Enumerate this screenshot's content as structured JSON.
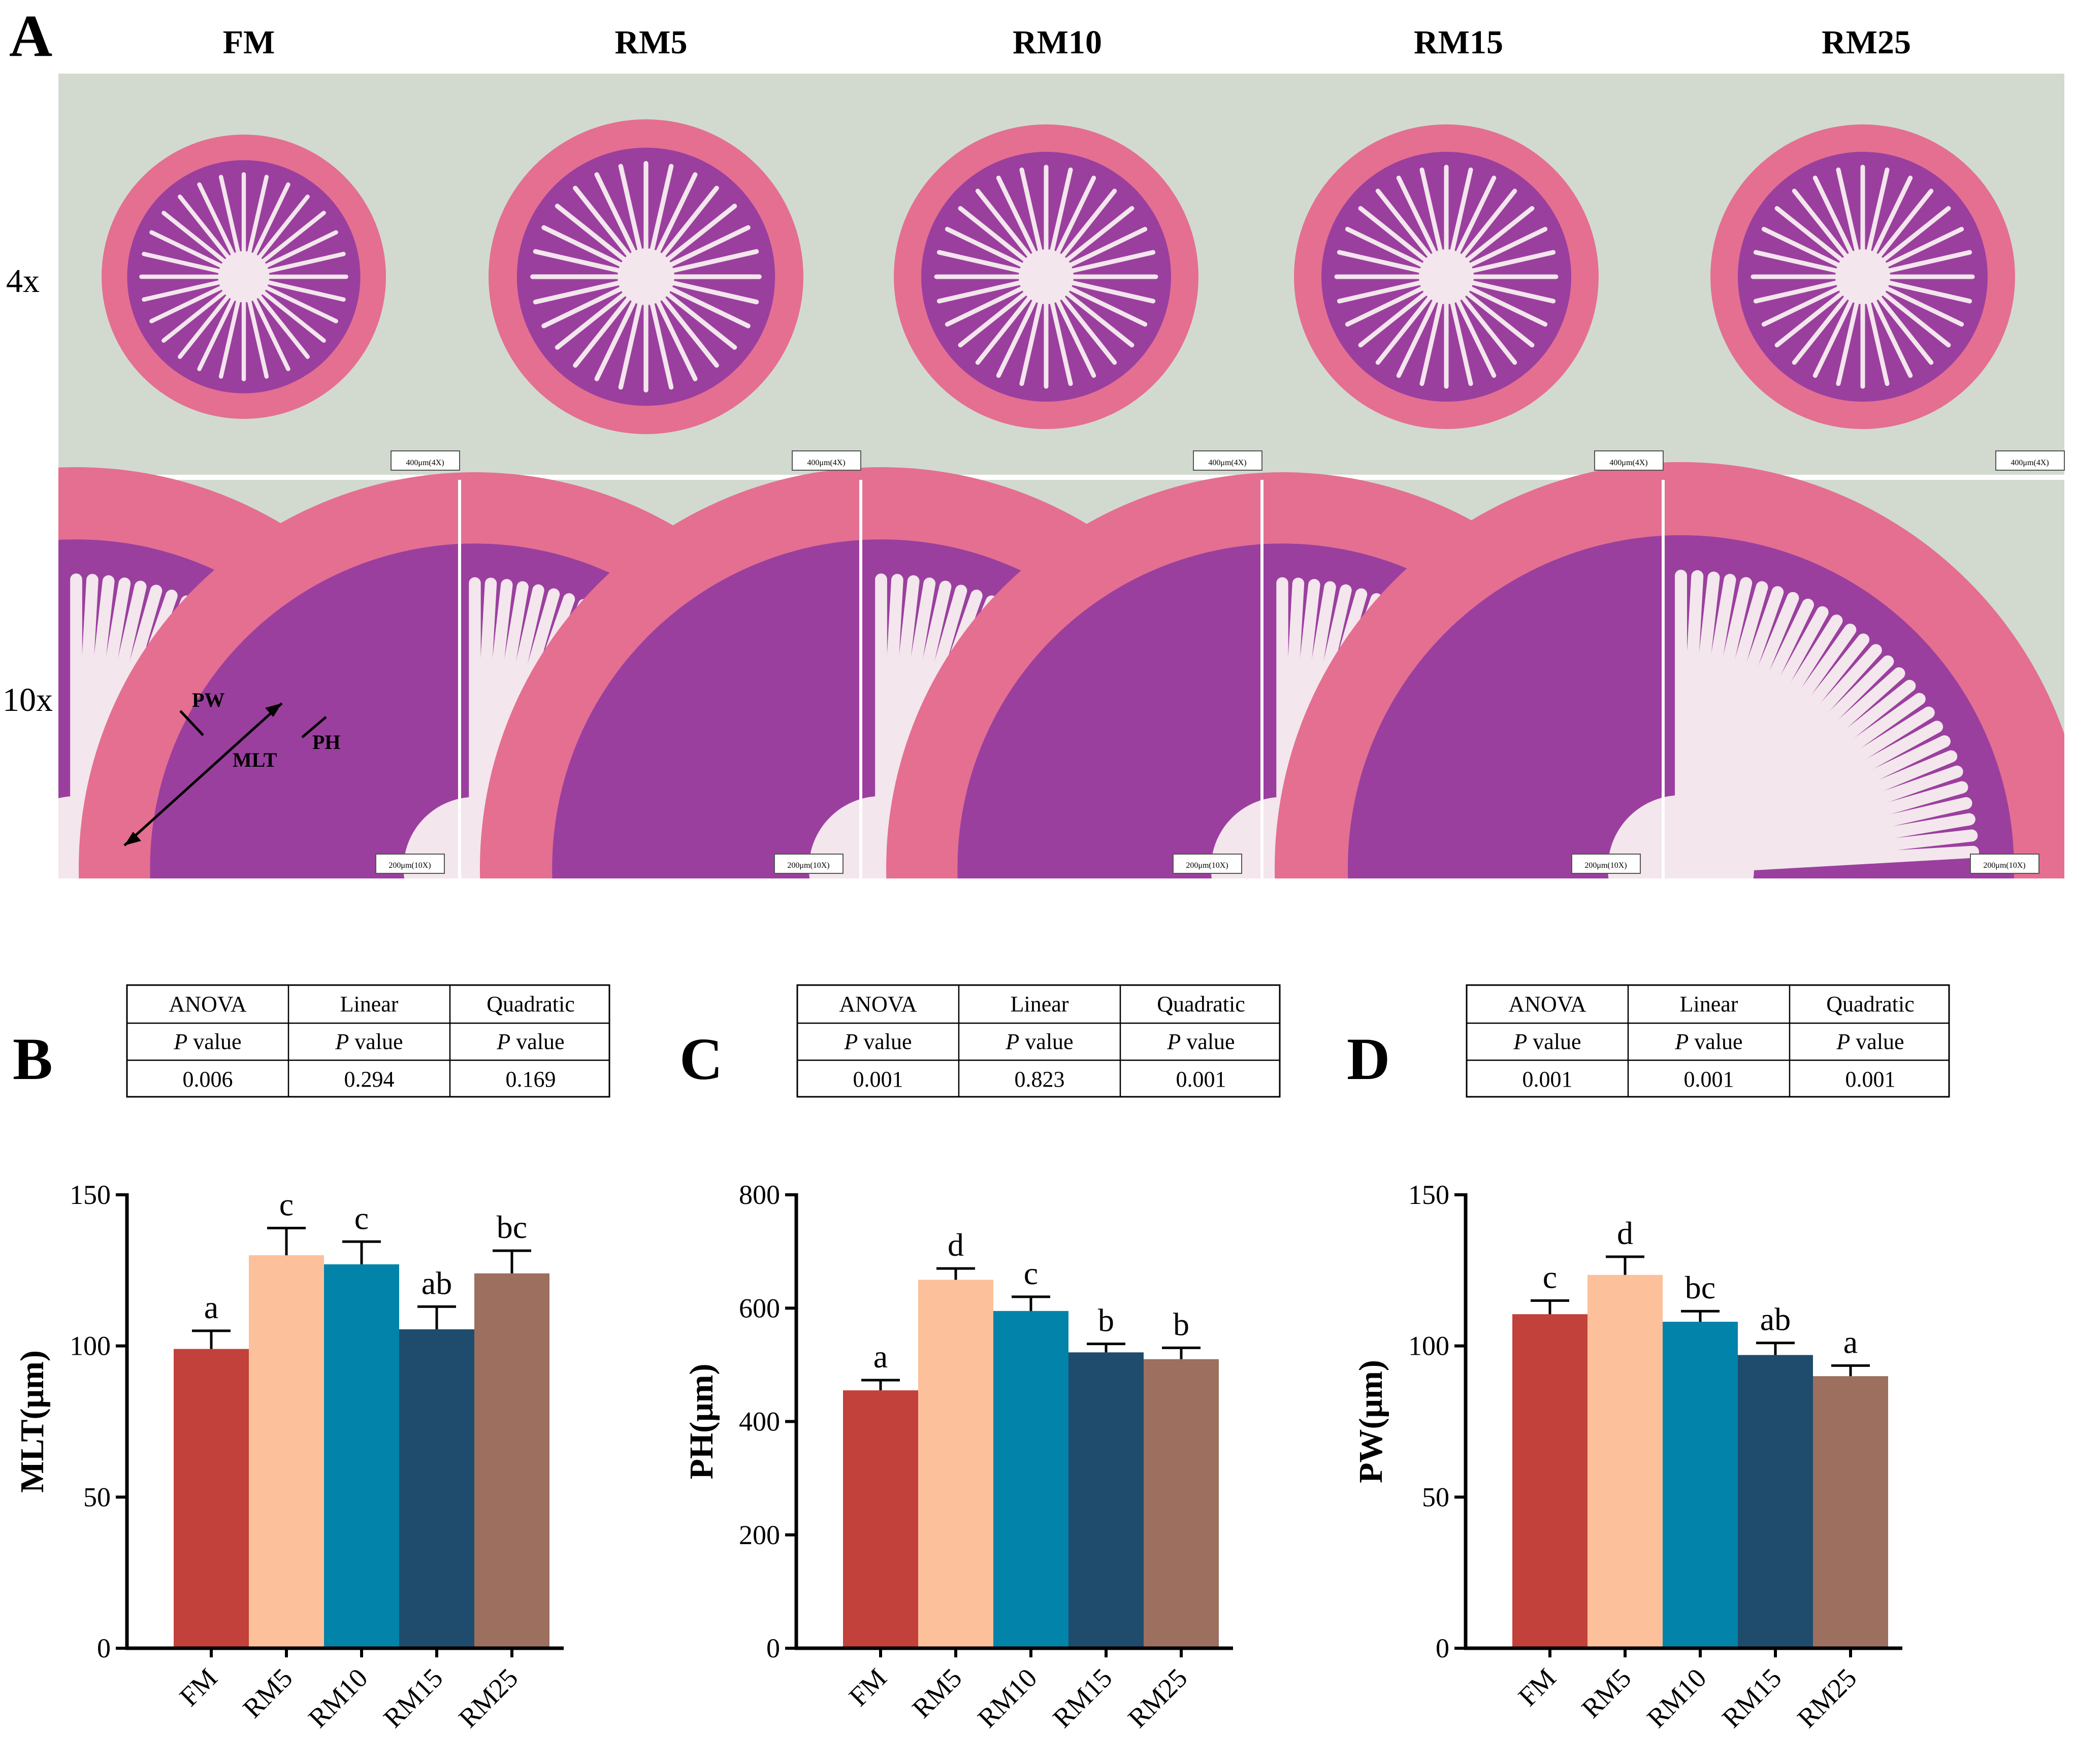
{
  "panel_a": {
    "letter": "A",
    "groups": [
      "FM",
      "RM5",
      "RM10",
      "RM15",
      "RM25"
    ],
    "rows": [
      {
        "label": "4x",
        "scale_bar": "400μm(4X)"
      },
      {
        "label": "10x",
        "scale_bar": "200μm(10X)"
      }
    ],
    "annotations": {
      "pw": "PW",
      "ph": "PH",
      "mlt": "MLT"
    }
  },
  "colors": {
    "FM": "#c2413a",
    "RM5": "#fcc09a",
    "RM10": "#0183aa",
    "RM15": "#1f4c6c",
    "RM25": "#9c6f5e",
    "background": "#d2dad0",
    "tissue": "#e46f91",
    "villi": "#9b3f9f",
    "lumen": "#f3e6ec"
  },
  "stat_tables": [
    {
      "header": [
        "ANOVA",
        "Linear",
        "Quadratic"
      ],
      "sub": [
        "value",
        "value",
        "value"
      ],
      "p": "P",
      "values": [
        "0.006",
        "0.294",
        "0.169"
      ]
    },
    {
      "header": [
        "ANOVA",
        "Linear",
        "Quadratic"
      ],
      "sub": [
        "value",
        "value",
        "value"
      ],
      "p": "P",
      "values": [
        "0.001",
        "0.823",
        "0.001"
      ]
    },
    {
      "header": [
        "ANOVA",
        "Linear",
        "Quadratic"
      ],
      "sub": [
        "value",
        "value",
        "value"
      ],
      "p": "P",
      "values": [
        "0.001",
        "0.001",
        "0.001"
      ]
    }
  ],
  "chart_data": [
    {
      "panel": "B",
      "type": "bar",
      "categories": [
        "FM",
        "RM5",
        "RM10",
        "RM15",
        "RM25"
      ],
      "values": [
        99,
        130,
        127,
        105.5,
        124
      ],
      "errors": [
        6,
        9,
        7.5,
        7.5,
        7.5
      ],
      "letters": [
        "a",
        "c",
        "c",
        "ab",
        "bc"
      ],
      "ylabel": "MLT(μm)",
      "ylim": [
        0,
        150
      ],
      "yticks": [
        0,
        50,
        100,
        150
      ],
      "xlabel": ""
    },
    {
      "panel": "C",
      "type": "bar",
      "categories": [
        "FM",
        "RM5",
        "RM10",
        "RM15",
        "RM25"
      ],
      "values": [
        455,
        650,
        595,
        522,
        510
      ],
      "errors": [
        18,
        20,
        25,
        15,
        20
      ],
      "letters": [
        "a",
        "d",
        "c",
        "b",
        "b"
      ],
      "ylabel": "PH(μm)",
      "ylim": [
        0,
        800
      ],
      "yticks": [
        0,
        200,
        400,
        600,
        800
      ],
      "xlabel": ""
    },
    {
      "panel": "D",
      "type": "bar",
      "categories": [
        "FM",
        "RM5",
        "RM10",
        "RM15",
        "RM25"
      ],
      "values": [
        110.5,
        123.5,
        108,
        97,
        90
      ],
      "errors": [
        4.5,
        6,
        3.5,
        4,
        3.5
      ],
      "letters": [
        "c",
        "d",
        "bc",
        "ab",
        "a"
      ],
      "ylabel": "PW(μm)",
      "ylim": [
        0,
        150
      ],
      "yticks": [
        0,
        50,
        100,
        150
      ],
      "xlabel": ""
    }
  ]
}
